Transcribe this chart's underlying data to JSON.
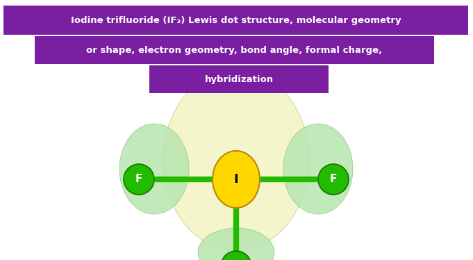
{
  "bg_color": "#ffffff",
  "header_bg": "#7B1FA2",
  "header_text_color": "#ffffff",
  "header_line1": "Iodine trifluoride (IF₃) Lewis dot structure, molecular geometry",
  "header_line2": "or shape, electron geometry, bond angle, formal charge,",
  "header_line3": "hybridization",
  "header_font_size": 9.5,
  "I_color": "#FFD700",
  "I_color_dark": "#b8860b",
  "I_label": "I",
  "F_color": "#22BB00",
  "F_color_dark": "#117700",
  "F_label": "F",
  "bond_color": "#22BB00",
  "big_blob_color": "#f5f5c8",
  "big_blob_edge": "#d4d490",
  "lp_blob_color": "#b8e6b0",
  "lp_blob_edge": "#80c070",
  "bottom_blob_color": "#b8e6b0",
  "bottom_blob_edge": "#80c070"
}
